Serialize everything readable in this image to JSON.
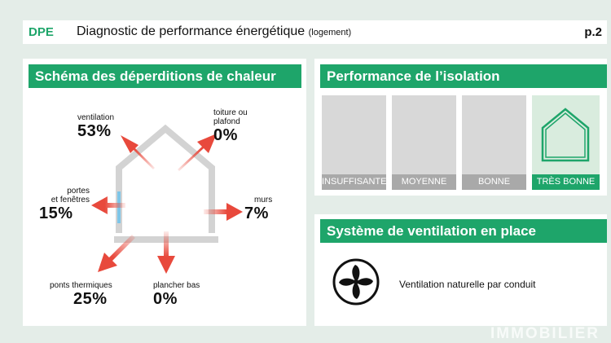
{
  "header": {
    "tag": "DPE",
    "title": "Diagnostic de performance énergétique",
    "subtitle": "(logement)",
    "page": "p.2"
  },
  "heat_loss": {
    "title": "Schéma des déperditions de chaleur",
    "items": [
      {
        "id": "ventilation",
        "label": "ventilation",
        "value": "53%",
        "percent": 53
      },
      {
        "id": "toiture",
        "label_lines": [
          "toiture ou",
          "plafond"
        ],
        "value": "0%",
        "percent": 0
      },
      {
        "id": "portes",
        "label_lines": [
          "portes",
          "et fenêtres"
        ],
        "value": "15%",
        "percent": 15
      },
      {
        "id": "murs",
        "label": "murs",
        "value": "7%",
        "percent": 7
      },
      {
        "id": "ponts",
        "label": "ponts thermiques",
        "value": "25%",
        "percent": 25
      },
      {
        "id": "plancher",
        "label": "plancher bas",
        "value": "0%",
        "percent": 0
      }
    ],
    "arrow_color": "#e8493c",
    "house_color": "#d3d3d3",
    "window_color": "#7ec6e8"
  },
  "insulation": {
    "title": "Performance de l’isolation",
    "levels": [
      "INSUFFISANTE",
      "MOYENNE",
      "BONNE",
      "TRÈS BONNE"
    ],
    "selected": "TRÈS BONNE",
    "accent": "#1ea56a"
  },
  "ventilation": {
    "title": "Système de ventilation en place",
    "system": "Ventilation naturelle par conduit",
    "icon": "fan-icon"
  },
  "watermark": "IMMOBILIER"
}
